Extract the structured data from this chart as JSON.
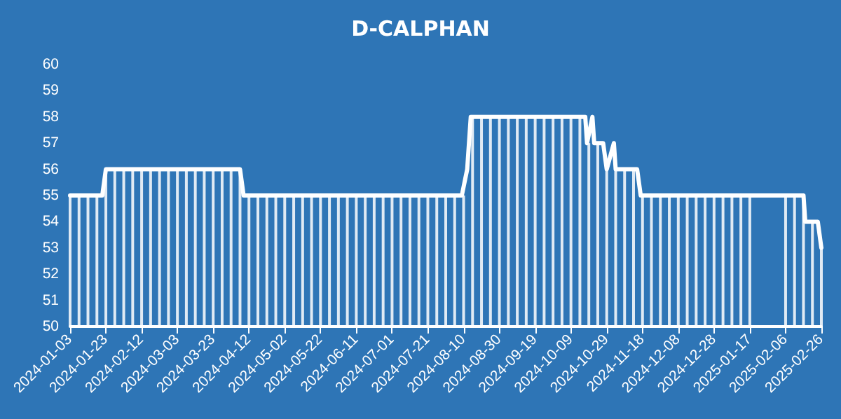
{
  "chart_data": {
    "type": "bar",
    "title": "D-CALPHAN",
    "xlim": [
      "2024-01-03",
      "2025-02-26"
    ],
    "xticks": [
      "2024-01-03",
      "2024-01-23",
      "2024-02-12",
      "2024-03-03",
      "2024-03-23",
      "2024-04-12",
      "2024-05-02",
      "2024-05-22",
      "2024-06-11",
      "2024-07-01",
      "2024-07-21",
      "2024-08-10",
      "2024-08-30",
      "2024-09-19",
      "2024-10-09",
      "2024-10-29",
      "2024-11-18",
      "2024-12-08",
      "2024-12-28",
      "2025-01-17",
      "2025-02-06",
      "2025-02-26"
    ],
    "ylim": [
      50,
      60
    ],
    "yticks": [
      50,
      51,
      52,
      53,
      54,
      55,
      56,
      57,
      58,
      59,
      60
    ],
    "grid": false,
    "series": [
      {
        "color": "#ffffff",
        "x": [
          "2024-01-03",
          "2024-01-08",
          "2024-01-13",
          "2024-01-18",
          "2024-01-23",
          "2024-01-28",
          "2024-02-02",
          "2024-02-07",
          "2024-02-12",
          "2024-02-17",
          "2024-02-22",
          "2024-02-27",
          "2024-03-03",
          "2024-03-08",
          "2024-03-13",
          "2024-03-18",
          "2024-03-23",
          "2024-03-28",
          "2024-04-02",
          "2024-04-07",
          "2024-04-12",
          "2024-04-17",
          "2024-04-22",
          "2024-04-27",
          "2024-05-02",
          "2024-05-07",
          "2024-05-12",
          "2024-05-17",
          "2024-05-22",
          "2024-05-27",
          "2024-06-01",
          "2024-06-06",
          "2024-06-11",
          "2024-06-16",
          "2024-06-21",
          "2024-06-26",
          "2024-07-01",
          "2024-07-06",
          "2024-07-11",
          "2024-07-16",
          "2024-07-21",
          "2024-07-26",
          "2024-07-31",
          "2024-08-05",
          "2024-08-10",
          "2024-08-15",
          "2024-08-20",
          "2024-08-25",
          "2024-08-30",
          "2024-09-04",
          "2024-09-09",
          "2024-09-14",
          "2024-09-19",
          "2024-09-24",
          "2024-09-29",
          "2024-10-04",
          "2024-10-09",
          "2024-10-14",
          "2024-10-19",
          "2024-10-24",
          "2024-10-29",
          "2024-11-03",
          "2024-11-08",
          "2024-11-13",
          "2024-11-18",
          "2024-11-23",
          "2024-11-28",
          "2024-12-03",
          "2024-12-08",
          "2024-12-13",
          "2024-12-18",
          "2024-12-23",
          "2024-12-28",
          "2025-01-02",
          "2025-01-07",
          "2025-01-12",
          "2025-01-17",
          "2025-01-22",
          "2025-01-27",
          "2025-02-01",
          "2025-02-06",
          "2025-02-11",
          "2025-02-16",
          "2025-02-21",
          "2025-02-26"
        ],
        "values": [
          55,
          55,
          55,
          55,
          56,
          56,
          56,
          56,
          56,
          56,
          56,
          56,
          56,
          56,
          56,
          56,
          56,
          56,
          56,
          56,
          55,
          55,
          55,
          55,
          55,
          55,
          55,
          55,
          55,
          55,
          55,
          55,
          55,
          55,
          55,
          55,
          55,
          55,
          55,
          55,
          55,
          55,
          55,
          55,
          55,
          58,
          58,
          58,
          58,
          58,
          58,
          58,
          58,
          58,
          58,
          58,
          58,
          58,
          57,
          57,
          56,
          56,
          56,
          56,
          55,
          55,
          55,
          55,
          55,
          55,
          55,
          55,
          55,
          55,
          55,
          55,
          55,
          null,
          null,
          null,
          55,
          55,
          55,
          54,
          53
        ]
      },
      {
        "type": "line",
        "color": "#ffffff",
        "x": [
          "2024-01-03",
          "2024-01-21",
          "2024-01-23",
          "2024-04-07",
          "2024-04-09",
          "2024-08-09",
          "2024-08-12",
          "2024-08-14",
          "2024-10-17",
          "2024-10-18",
          "2024-10-21",
          "2024-10-22",
          "2024-10-27",
          "2024-10-29",
          "2024-11-02",
          "2024-11-03",
          "2024-11-15",
          "2024-11-17",
          "2025-02-16",
          "2025-02-17",
          "2025-02-24",
          "2025-02-26"
        ],
        "values": [
          55,
          55,
          56,
          56,
          55,
          55,
          56,
          58,
          58,
          57,
          58,
          57,
          57,
          56,
          57,
          56,
          56,
          55,
          55,
          54,
          54,
          53
        ]
      }
    ]
  }
}
